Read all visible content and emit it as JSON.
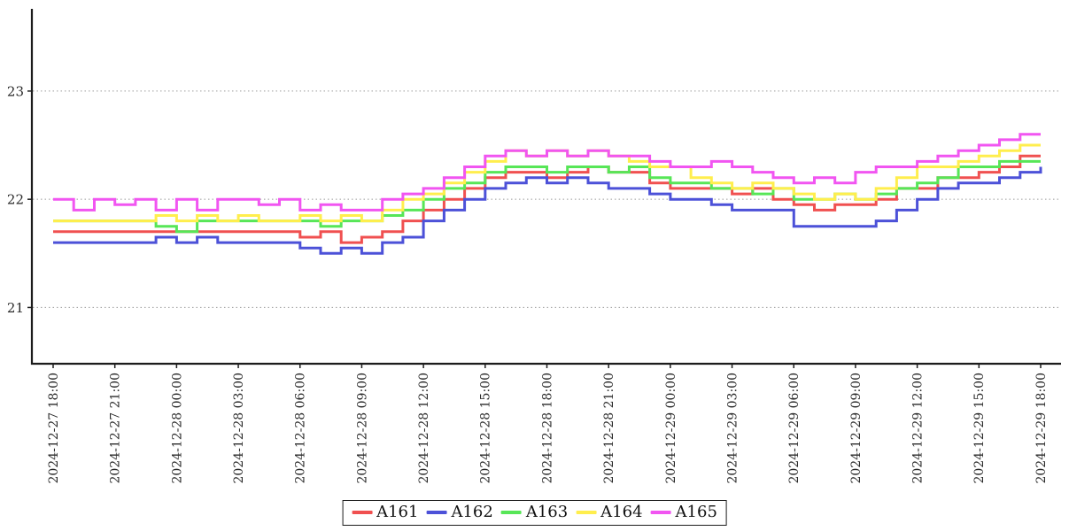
{
  "chart_data": {
    "type": "line",
    "title": "",
    "xlabel": "",
    "ylabel": "",
    "line_style": "step-after",
    "grid": "horizontal-dotted",
    "legend_position": "bottom-center",
    "y_ticks": [
      21,
      22,
      23
    ],
    "ylim": [
      20.48,
      23.76
    ],
    "x_hours_span": 48,
    "x_tick_interval_hours": 3,
    "x_tick_labels": [
      "2024-12-27 18:00",
      "2024-12-27 21:00",
      "2024-12-28 00:00",
      "2024-12-28 03:00",
      "2024-12-28 06:00",
      "2024-12-28 09:00",
      "2024-12-28 12:00",
      "2024-12-28 15:00",
      "2024-12-28 18:00",
      "2024-12-28 21:00",
      "2024-12-29 00:00",
      "2024-12-29 03:00",
      "2024-12-29 06:00",
      "2024-12-29 09:00",
      "2024-12-29 12:00",
      "2024-12-29 15:00",
      "2024-12-29 18:00"
    ],
    "series": [
      {
        "name": "A161",
        "color": "#f05050",
        "values": [
          21.7,
          21.7,
          21.7,
          21.7,
          21.7,
          21.7,
          21.7,
          21.7,
          21.7,
          21.7,
          21.7,
          21.7,
          21.65,
          21.7,
          21.6,
          21.65,
          21.7,
          21.8,
          21.9,
          22.0,
          22.1,
          22.2,
          22.25,
          22.25,
          22.2,
          22.25,
          22.3,
          22.25,
          22.25,
          22.15,
          22.1,
          22.1,
          22.1,
          22.05,
          22.1,
          22.0,
          21.95,
          21.9,
          21.95,
          21.95,
          22.0,
          22.1,
          22.1,
          22.2,
          22.2,
          22.25,
          22.3,
          22.4,
          22.4
        ]
      },
      {
        "name": "A162",
        "color": "#4c51d8",
        "values": [
          21.6,
          21.6,
          21.6,
          21.6,
          21.6,
          21.65,
          21.6,
          21.65,
          21.6,
          21.6,
          21.6,
          21.6,
          21.55,
          21.5,
          21.55,
          21.5,
          21.6,
          21.65,
          21.8,
          21.9,
          22.0,
          22.1,
          22.15,
          22.2,
          22.15,
          22.2,
          22.15,
          22.1,
          22.1,
          22.05,
          22.0,
          22.0,
          21.95,
          21.9,
          21.9,
          21.9,
          21.75,
          21.75,
          21.75,
          21.75,
          21.8,
          21.9,
          22.0,
          22.1,
          22.15,
          22.15,
          22.2,
          22.25,
          22.3
        ]
      },
      {
        "name": "A163",
        "color": "#57e657",
        "values": [
          21.8,
          21.8,
          21.8,
          21.8,
          21.8,
          21.75,
          21.7,
          21.8,
          21.8,
          21.8,
          21.8,
          21.8,
          21.8,
          21.75,
          21.8,
          21.8,
          21.85,
          21.9,
          22.0,
          22.1,
          22.15,
          22.25,
          22.3,
          22.3,
          22.25,
          22.3,
          22.3,
          22.25,
          22.3,
          22.2,
          22.15,
          22.15,
          22.1,
          22.1,
          22.05,
          22.1,
          22.0,
          22.0,
          22.05,
          22.0,
          22.05,
          22.1,
          22.15,
          22.2,
          22.3,
          22.3,
          22.35,
          22.35,
          22.35
        ]
      },
      {
        "name": "A164",
        "color": "#ffee4d",
        "values": [
          21.8,
          21.8,
          21.8,
          21.8,
          21.8,
          21.85,
          21.8,
          21.85,
          21.8,
          21.85,
          21.8,
          21.8,
          21.85,
          21.8,
          21.85,
          21.8,
          21.9,
          22.0,
          22.05,
          22.15,
          22.25,
          22.35,
          22.45,
          22.4,
          22.45,
          22.4,
          22.45,
          22.4,
          22.35,
          22.3,
          22.3,
          22.2,
          22.15,
          22.1,
          22.15,
          22.1,
          22.05,
          22.0,
          22.05,
          22.0,
          22.1,
          22.2,
          22.3,
          22.3,
          22.35,
          22.4,
          22.45,
          22.5,
          22.5
        ]
      },
      {
        "name": "A165",
        "color": "#f155f1",
        "values": [
          22.0,
          21.9,
          22.0,
          21.95,
          22.0,
          21.9,
          22.0,
          21.9,
          22.0,
          22.0,
          21.95,
          22.0,
          21.9,
          21.95,
          21.9,
          21.9,
          22.0,
          22.05,
          22.1,
          22.2,
          22.3,
          22.4,
          22.45,
          22.4,
          22.45,
          22.4,
          22.45,
          22.4,
          22.4,
          22.35,
          22.3,
          22.3,
          22.35,
          22.3,
          22.25,
          22.2,
          22.15,
          22.2,
          22.15,
          22.25,
          22.3,
          22.3,
          22.35,
          22.4,
          22.45,
          22.5,
          22.55,
          22.6,
          22.6
        ]
      }
    ]
  },
  "legend": {
    "labels": [
      "A161",
      "A162",
      "A163",
      "A164",
      "A165"
    ]
  },
  "colors": {
    "axis": "#1c1c1c",
    "grid": "#9a9a9a",
    "background": "#ffffff"
  }
}
